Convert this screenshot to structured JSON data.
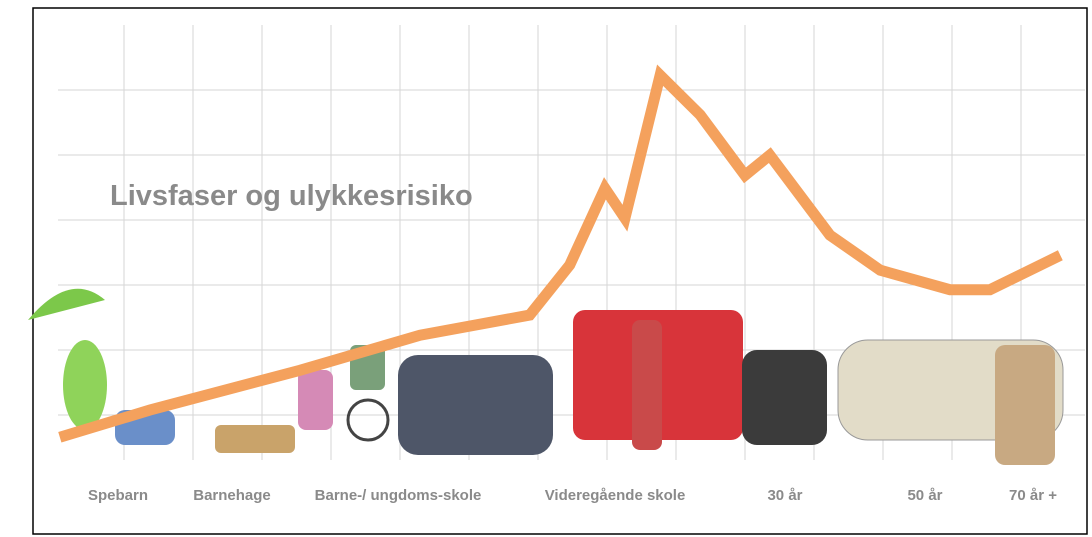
{
  "chart_data": {
    "type": "line",
    "title": "Livsfaser og ulykkesrisiko",
    "categories": [
      "Spebarn",
      "Barnehage",
      "Barne-/ ungdoms-skole",
      "Videregående skole",
      "30 år",
      "50 år",
      "70 år +"
    ],
    "x": [
      0.07,
      1.38,
      3.55,
      5.29,
      6.88,
      7.46,
      7.97,
      8.26,
      8.77,
      9.35,
      10.0,
      10.36,
      11.23,
      11.96,
      12.97,
      13.55,
      14.57
    ],
    "values": [
      0.35,
      0.77,
      1.38,
      1.92,
      2.23,
      3.0,
      4.18,
      3.72,
      5.92,
      5.31,
      4.38,
      4.69,
      3.46,
      2.92,
      2.62,
      2.62,
      3.15
    ],
    "color": "#f4a15d",
    "xlim": [
      0,
      15
    ],
    "ylim": [
      0,
      7
    ],
    "grid": true
  }
}
